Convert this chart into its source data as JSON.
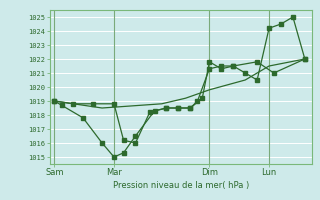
{
  "background_color": "#ceeaea",
  "grid_color": "#ffffff",
  "line_color": "#2d6a2d",
  "tick_color": "#2d6a2d",
  "spine_color": "#7ab87a",
  "ylabel_min": 1015,
  "ylabel_max": 1025,
  "xlabel": "Pression niveau de la mer( hPa )",
  "day_labels": [
    "Sam",
    "Mar",
    "Dim",
    "Lun"
  ],
  "day_positions": [
    0,
    2.5,
    6.5,
    9.0
  ],
  "vline_color": "#7aaa7a",
  "series1": {
    "x": [
      0.0,
      0.3,
      1.2,
      2.0,
      2.5,
      2.9,
      3.4,
      4.2,
      4.7,
      5.2,
      5.7,
      6.0,
      6.5,
      7.0,
      7.5,
      8.5,
      9.2,
      10.5
    ],
    "y": [
      1019,
      1018.7,
      1017.8,
      1016.0,
      1015.0,
      1015.3,
      1016.5,
      1018.3,
      1018.5,
      1018.5,
      1018.5,
      1019.0,
      1021.3,
      1021.5,
      1021.5,
      1021.8,
      1021.0,
      1022.0
    ]
  },
  "series2": {
    "x": [
      0.0,
      0.8,
      1.6,
      2.5,
      2.9,
      3.4,
      4.0,
      4.7,
      5.2,
      5.7,
      6.2,
      6.5,
      7.0,
      7.5,
      8.0,
      8.5,
      9.0,
      9.5,
      10.0,
      10.5
    ],
    "y": [
      1019,
      1018.8,
      1018.8,
      1018.8,
      1016.2,
      1016.0,
      1018.2,
      1018.5,
      1018.5,
      1018.5,
      1019.2,
      1021.8,
      1021.3,
      1021.5,
      1021.0,
      1020.5,
      1024.2,
      1024.5,
      1025.0,
      1022.0
    ]
  },
  "series3": {
    "x": [
      0.0,
      2.0,
      4.5,
      5.5,
      6.5,
      8.0,
      9.0,
      10.5
    ],
    "y": [
      1019,
      1018.5,
      1018.8,
      1019.2,
      1019.8,
      1020.5,
      1021.5,
      1022.0
    ]
  },
  "xlim": [
    -0.2,
    10.8
  ],
  "ylim": [
    1014.5,
    1025.5
  ]
}
